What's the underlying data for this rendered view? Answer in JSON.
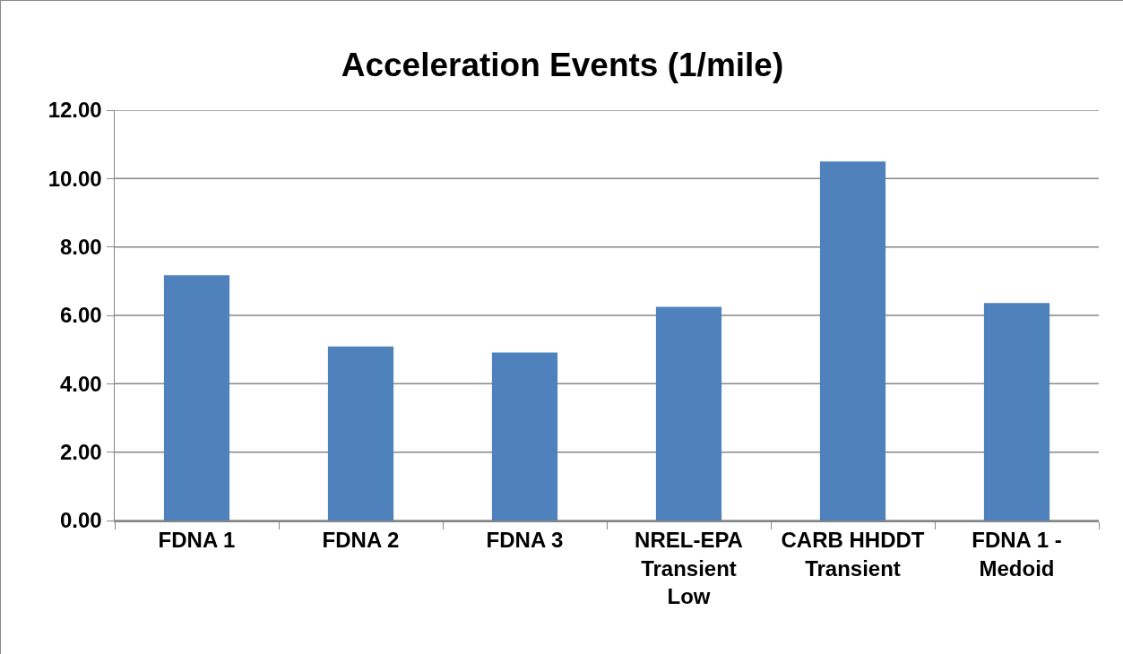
{
  "chart_data": {
    "type": "bar",
    "title": "Acceleration Events (1/mile)",
    "categories": [
      "FDNA 1",
      "FDNA 2",
      "FDNA 3",
      "NREL-EPA Transient Low",
      "CARB HHDDT Transient",
      "FDNA 1 - Medoid"
    ],
    "values": [
      7.17,
      5.09,
      4.91,
      6.25,
      10.5,
      6.36
    ],
    "color": "#4f81bd",
    "ylim": [
      0,
      12
    ],
    "yticks": [
      {
        "value": 0,
        "label": "0.00"
      },
      {
        "value": 2,
        "label": "2.00"
      },
      {
        "value": 4,
        "label": "4.00"
      },
      {
        "value": 6,
        "label": "6.00"
      },
      {
        "value": 8,
        "label": "8.00"
      },
      {
        "value": 10,
        "label": "10.00"
      },
      {
        "value": 12,
        "label": "12.00"
      }
    ],
    "grid": "y"
  }
}
